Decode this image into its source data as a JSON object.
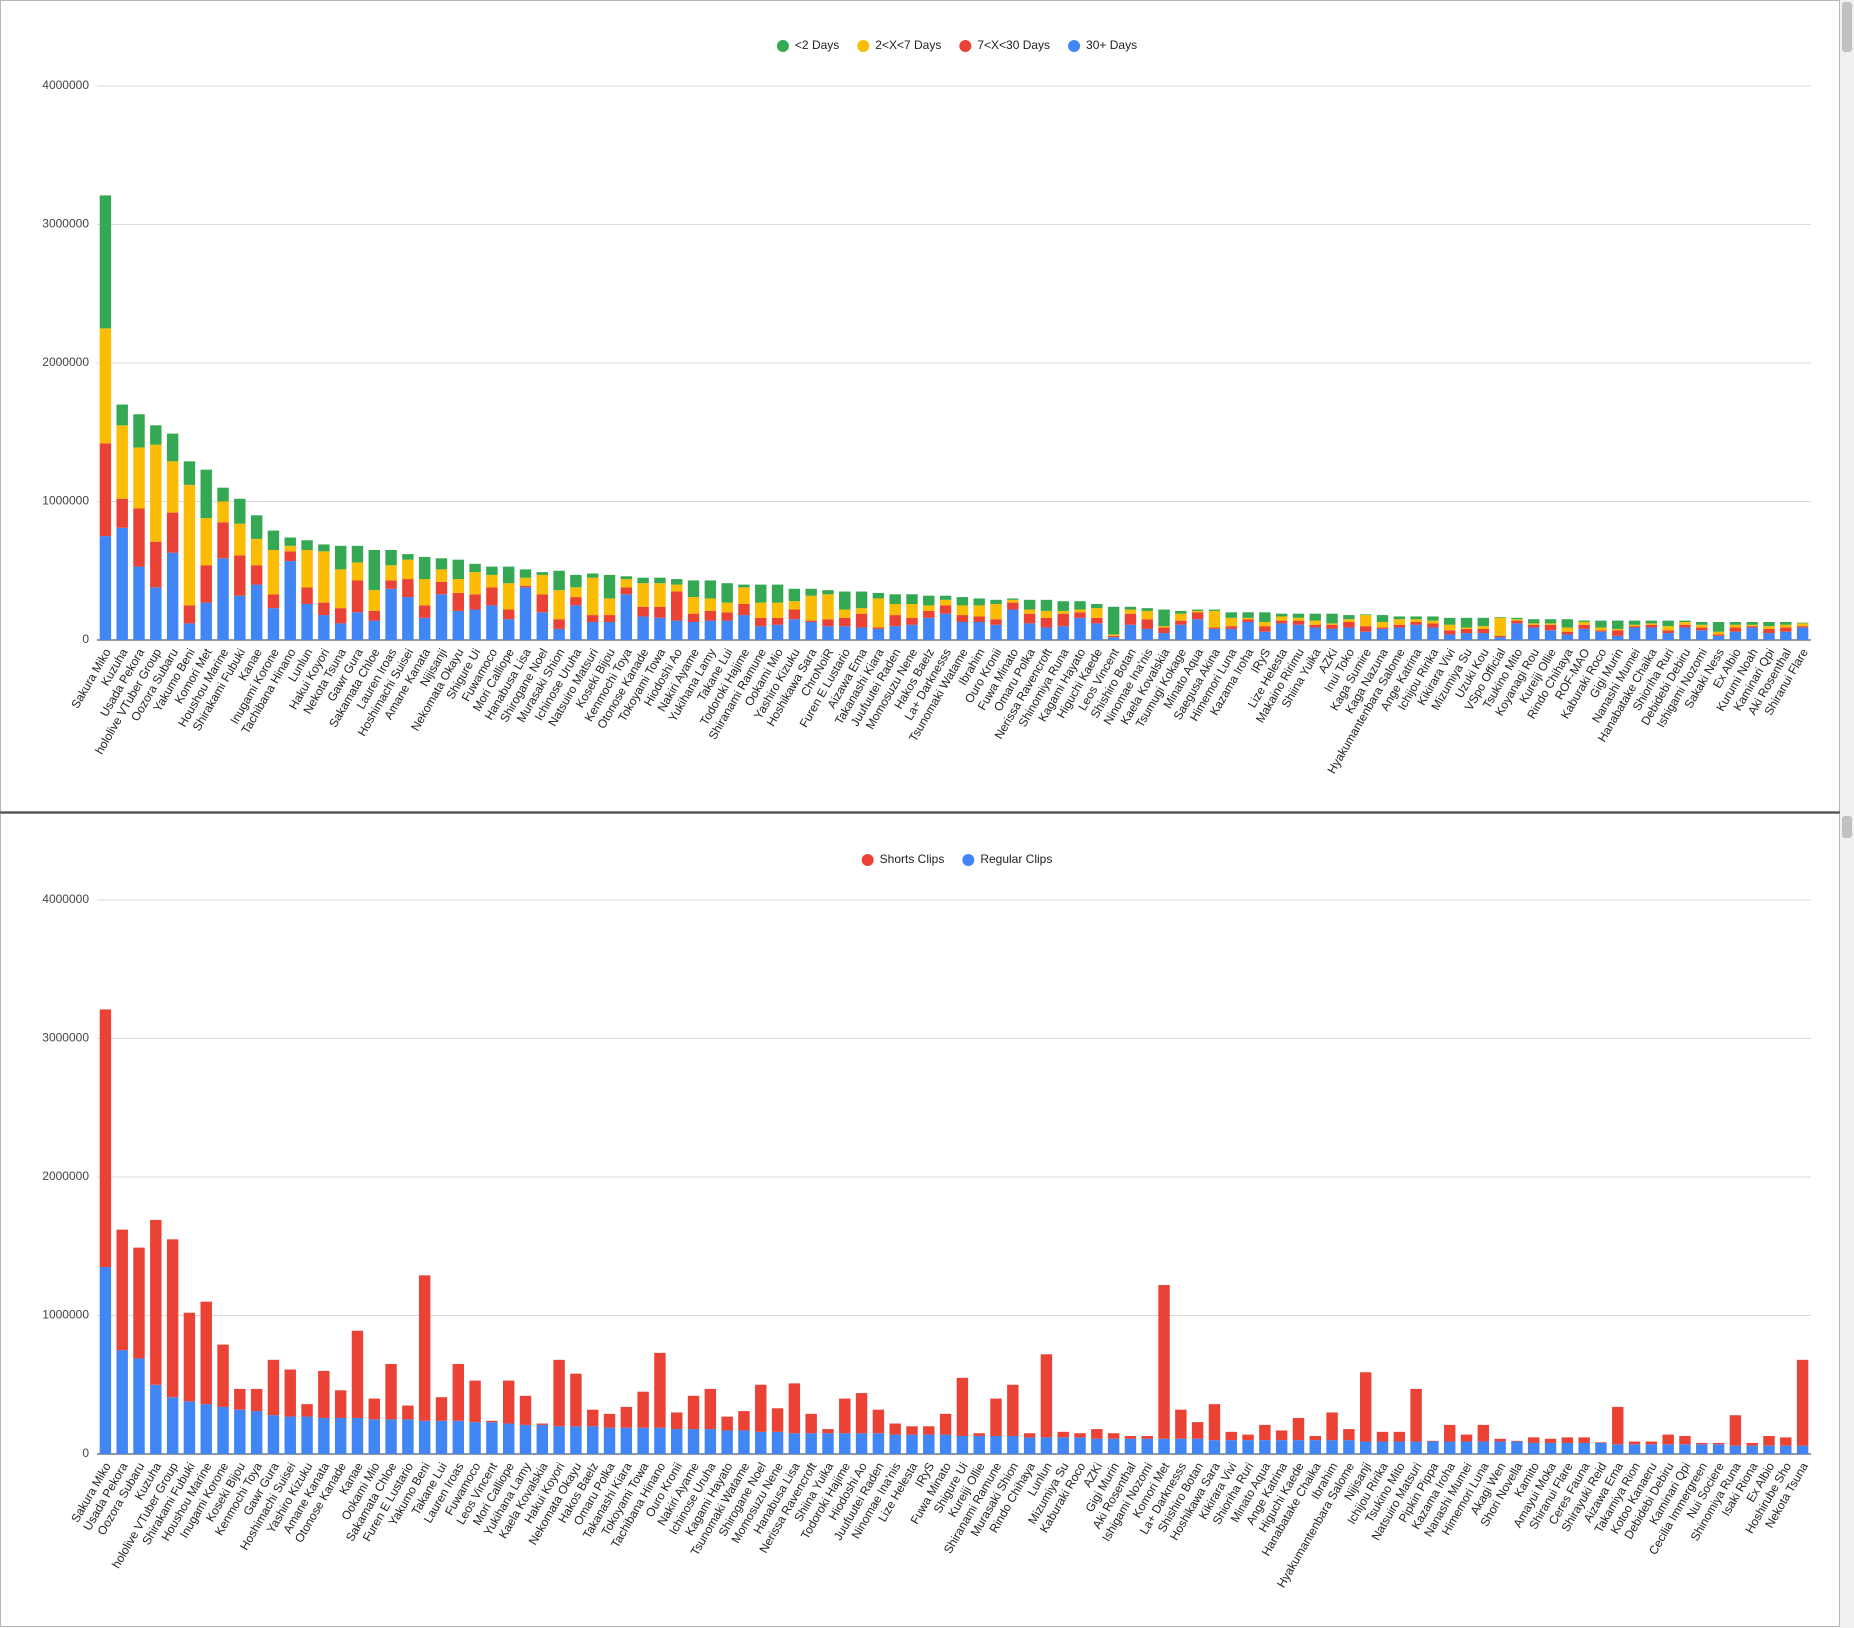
{
  "chart_data": [
    {
      "type": "stacked_bar",
      "categories": [
        "Sakura Miko",
        "Kuzuha",
        "Usada Pekora",
        "hololive VTuber Group",
        "Oozora Subaru",
        "Yakumo Beni",
        "Komori Met",
        "Houshou Marine",
        "Shirakami Fubuki",
        "Kanae",
        "Inugami Korone",
        "Tachibana Hinano",
        "Lunlun",
        "Hakui Koyori",
        "Nekota Tsuna",
        "Gawr Gura",
        "Sakamata Chloe",
        "Lauren Iroas",
        "Hoshimachi Suisei",
        "Amane Kanata",
        "Nijisanji",
        "Nekomata Okayu",
        "Shigure Ui",
        "Fuwamoco",
        "Mori Calliope",
        "Hanabusa Lisa",
        "Shirogane Noel",
        "Murasaki Shion",
        "Ichinose Uruha",
        "Natsuiro Matsuri",
        "Koseki Bijou",
        "Kenmochi Toya",
        "Otonose Kanade",
        "Tokoyami Towa",
        "Hiodoshi Ao",
        "Nakiri Ayame",
        "Yukihana Lamy",
        "Takane Lui",
        "Todoroki Hajime",
        "Shiranami Ramune",
        "Ookami Mio",
        "Yashiro Kizuku",
        "Hoshikawa Sara",
        "ChroNoiR",
        "Furen E Lustario",
        "Aizawa Ema",
        "Takanashi Kiara",
        "Juufuutei Raden",
        "Momosuzu Nene",
        "Hakos Baelz",
        "La+ Darknesss",
        "Tsunomaki Watame",
        "Ibrahim",
        "Ouro Kronii",
        "Fuwa Minato",
        "Omaru Polka",
        "Nerissa Ravencroft",
        "Shinomiya Runa",
        "Kagami Hayato",
        "Higuchi Kaede",
        "Leos Vincent",
        "Shishiro Botan",
        "Ninomae Ina'nis",
        "Kaela Kovalskia",
        "Tsumugi Kokage",
        "Minato Aqua",
        "Saegusa Akina",
        "Himemori Luna",
        "Kazama Iroha",
        "IRyS",
        "Lize Helesta",
        "Makaino Ririmu",
        "Shiina Yuika",
        "AZKi",
        "Inui Toko",
        "Kaga Sumire",
        "Kaga Nazuna",
        "Hyakumantenbara Salome",
        "Ange Katrina",
        "Ichijou Ririka",
        "Kikirara Vivi",
        "Mizumiya Su",
        "Uzuki Kou",
        "VSpo Official",
        "Tsukino Mito",
        "Koyanagi Rou",
        "Kureiji Ollie",
        "Rindo Chihaya",
        "ROF-MAO",
        "Kaburaki Roco",
        "Gigi Murin",
        "Nanashi Mumei",
        "Hanabatake Chaika",
        "Shioriha Ruri",
        "Debidebi Debiru",
        "Ishigami Nozomi",
        "Sakaki Ness",
        "Ex Albio",
        "Kurumi Noah",
        "Kaminari Qpi",
        "Aki Rosenthal",
        "Shiranui Flare"
      ],
      "series": [
        {
          "name": "<2 Days",
          "color": "#34a853",
          "values": [
            960000,
            150000,
            240000,
            140000,
            200000,
            170000,
            350000,
            100000,
            180000,
            170000,
            140000,
            60000,
            70000,
            50000,
            170000,
            120000,
            290000,
            110000,
            40000,
            160000,
            80000,
            140000,
            60000,
            60000,
            120000,
            60000,
            20000,
            140000,
            90000,
            30000,
            170000,
            20000,
            40000,
            40000,
            40000,
            120000,
            130000,
            140000,
            20000,
            130000,
            130000,
            90000,
            50000,
            30000,
            130000,
            120000,
            40000,
            70000,
            70000,
            70000,
            30000,
            60000,
            50000,
            30000,
            10000,
            70000,
            80000,
            70000,
            60000,
            30000,
            200000,
            20000,
            20000,
            120000,
            20000,
            10000,
            10000,
            40000,
            40000,
            70000,
            20000,
            30000,
            50000,
            70000,
            30000,
            5000,
            50000,
            20000,
            20000,
            30000,
            50000,
            70000,
            60000,
            5000,
            10000,
            30000,
            30000,
            60000,
            10000,
            50000,
            60000,
            30000,
            20000,
            40000,
            10000,
            20000,
            70000,
            20000,
            20000,
            30000,
            20000,
            5000
          ]
        },
        {
          "name": "2<X<7 Days",
          "color": "#fbbc04",
          "values": [
            830000,
            530000,
            440000,
            700000,
            370000,
            870000,
            340000,
            150000,
            230000,
            190000,
            320000,
            40000,
            270000,
            370000,
            280000,
            130000,
            150000,
            110000,
            140000,
            190000,
            90000,
            100000,
            160000,
            90000,
            190000,
            60000,
            140000,
            210000,
            70000,
            270000,
            120000,
            60000,
            170000,
            170000,
            50000,
            120000,
            90000,
            70000,
            120000,
            110000,
            110000,
            60000,
            180000,
            180000,
            60000,
            40000,
            210000,
            80000,
            100000,
            40000,
            40000,
            70000,
            80000,
            110000,
            20000,
            30000,
            50000,
            20000,
            20000,
            70000,
            10000,
            30000,
            60000,
            10000,
            50000,
            10000,
            120000,
            60000,
            10000,
            30000,
            30000,
            20000,
            30000,
            10000,
            20000,
            80000,
            40000,
            40000,
            20000,
            20000,
            40000,
            10000,
            20000,
            130000,
            10000,
            10000,
            10000,
            30000,
            20000,
            20000,
            10000,
            10000,
            10000,
            30000,
            20000,
            20000,
            20000,
            20000,
            10000,
            20000,
            20000,
            20000
          ]
        },
        {
          "name": "7<X<30 Days",
          "color": "#ea4335",
          "values": [
            670000,
            210000,
            420000,
            330000,
            290000,
            130000,
            270000,
            260000,
            290000,
            140000,
            100000,
            70000,
            120000,
            90000,
            110000,
            230000,
            70000,
            60000,
            130000,
            90000,
            90000,
            130000,
            110000,
            130000,
            70000,
            10000,
            130000,
            70000,
            60000,
            50000,
            50000,
            50000,
            70000,
            80000,
            210000,
            60000,
            70000,
            60000,
            80000,
            60000,
            50000,
            70000,
            10000,
            50000,
            60000,
            100000,
            10000,
            80000,
            50000,
            50000,
            60000,
            50000,
            40000,
            40000,
            50000,
            70000,
            70000,
            90000,
            40000,
            40000,
            10000,
            80000,
            70000,
            40000,
            30000,
            50000,
            10000,
            20000,
            20000,
            40000,
            20000,
            30000,
            20000,
            30000,
            40000,
            40000,
            10000,
            20000,
            20000,
            30000,
            30000,
            30000,
            30000,
            10000,
            20000,
            20000,
            40000,
            20000,
            30000,
            10000,
            40000,
            10000,
            20000,
            20000,
            20000,
            20000,
            10000,
            30000,
            10000,
            30000,
            30000,
            10000
          ]
        },
        {
          "name": "30+ Days",
          "color": "#4285f4",
          "values": [
            750000,
            810000,
            530000,
            380000,
            630000,
            120000,
            270000,
            590000,
            320000,
            400000,
            230000,
            570000,
            260000,
            180000,
            120000,
            200000,
            140000,
            370000,
            310000,
            160000,
            330000,
            210000,
            220000,
            250000,
            150000,
            380000,
            200000,
            80000,
            250000,
            130000,
            130000,
            330000,
            170000,
            160000,
            140000,
            130000,
            140000,
            140000,
            180000,
            100000,
            110000,
            150000,
            130000,
            100000,
            100000,
            90000,
            80000,
            100000,
            110000,
            160000,
            190000,
            130000,
            130000,
            110000,
            220000,
            120000,
            90000,
            100000,
            160000,
            120000,
            20000,
            110000,
            80000,
            50000,
            110000,
            150000,
            80000,
            80000,
            130000,
            60000,
            120000,
            110000,
            90000,
            80000,
            90000,
            60000,
            80000,
            90000,
            110000,
            90000,
            40000,
            50000,
            50000,
            20000,
            120000,
            90000,
            70000,
            40000,
            80000,
            60000,
            30000,
            90000,
            90000,
            50000,
            90000,
            70000,
            30000,
            60000,
            90000,
            50000,
            60000,
            90000
          ]
        }
      ],
      "ylim": [
        0,
        4000000
      ],
      "yticks": [
        0,
        1000000,
        2000000,
        3000000,
        4000000
      ],
      "grid": true,
      "legend": "top"
    },
    {
      "type": "stacked_bar",
      "categories": [
        "Sakura Miko",
        "Usada Pekora",
        "Oozora Subaru",
        "Kuzuha",
        "hololive VTuber Group",
        "Shirakami Fubuki",
        "Houshou Marine",
        "Inugami Korone",
        "Koseki Bijou",
        "Kenmochi Toya",
        "Gawr Gura",
        "Hoshimachi Suisei",
        "Yashiro Kizuku",
        "Amane Kanata",
        "Otonose Kanade",
        "Kanae",
        "Ookami Mio",
        "Sakamata Chloe",
        "Furen E Lustario",
        "Yakumo Beni",
        "Takane Lui",
        "Lauren Iroas",
        "Fuwamoco",
        "Leos Vincent",
        "Mori Calliope",
        "Yukihana Lamy",
        "Kaela Kovalskia",
        "Hakui Koyori",
        "Nekomata Okayu",
        "Hakos Baelz",
        "Omaru Polka",
        "Takanashi Kiara",
        "Tokoyami Towa",
        "Tachibana Hinano",
        "Ouro Kronii",
        "Nakiri Ayame",
        "Ichinose Uruha",
        "Kagami Hayato",
        "Tsunomaki Watame",
        "Shirogane Noel",
        "Momosuzu Nene",
        "Hanabusa Lisa",
        "Nerissa Ravencroft",
        "Shiina Yuika",
        "Todoroki Hajime",
        "Hiodoshi Ao",
        "Juufuutei Raden",
        "Ninomae Ina'nis",
        "Lize Helesta",
        "IRyS",
        "Fuwa Minato",
        "Shigure Ui",
        "Kureiji Ollie",
        "Shiranami Ramune",
        "Murasaki Shion",
        "Rindo Chihaya",
        "Lunlun",
        "Mizumiya Su",
        "Kaburaki Roco",
        "AZKi",
        "Gigi Murin",
        "Aki Rosenthal",
        "Ishigami Nozomi",
        "Komori Met",
        "La+ Darknesss",
        "Shishiro Botan",
        "Hoshikawa Sara",
        "Kikirara Vivi",
        "Shioriha Ruri",
        "Minato Aqua",
        "Ange Katrina",
        "Higuchi Kaede",
        "Hanabatake Chaika",
        "Ibrahim",
        "Hyakumantenbara Salome",
        "Nijisanji",
        "Ichijou Ririka",
        "Tsukino Mito",
        "Natsuiro Matsuri",
        "Pipkin Pippa",
        "Kazama Iroha",
        "Nanashi Mumei",
        "Himemori Luna",
        "Akagi Wen",
        "Shori Novella",
        "Kamito",
        "Amayui Moka",
        "Shiranui Flare",
        "Ceres Fauna",
        "Shirayuki Reid",
        "Aizawa Ema",
        "Takamiya Rion",
        "Kotoo Kanaeru",
        "Debidebi Debiru",
        "Kaminari Qpi",
        "Cecilia Immergreen",
        "Nui Sociere",
        "Shinomiya Runa",
        "Isaki Riona",
        "Ex Albio",
        "Hoshirube Sho",
        "Nekota Tsuna"
      ],
      "series": [
        {
          "name": "Shorts Clips",
          "color": "#ea4335",
          "values": [
            1860000,
            870000,
            800000,
            1190000,
            1140000,
            640000,
            740000,
            450000,
            150000,
            160000,
            400000,
            340000,
            90000,
            340000,
            200000,
            630000,
            150000,
            400000,
            100000,
            1050000,
            170000,
            410000,
            300000,
            10000,
            310000,
            210000,
            10000,
            480000,
            380000,
            120000,
            100000,
            150000,
            260000,
            540000,
            120000,
            240000,
            290000,
            100000,
            140000,
            340000,
            170000,
            360000,
            140000,
            30000,
            250000,
            290000,
            170000,
            80000,
            60000,
            60000,
            150000,
            420000,
            20000,
            270000,
            370000,
            30000,
            600000,
            40000,
            30000,
            70000,
            40000,
            20000,
            20000,
            1110000,
            210000,
            120000,
            260000,
            60000,
            40000,
            110000,
            70000,
            160000,
            30000,
            200000,
            80000,
            500000,
            70000,
            70000,
            380000,
            5000,
            120000,
            50000,
            120000,
            20000,
            5000,
            40000,
            30000,
            40000,
            40000,
            5000,
            270000,
            20000,
            20000,
            70000,
            60000,
            10000,
            10000,
            220000,
            20000,
            70000,
            60000,
            620000
          ]
        },
        {
          "name": "Regular Clips",
          "color": "#4285f4",
          "values": [
            1350000,
            750000,
            690000,
            500000,
            410000,
            380000,
            360000,
            340000,
            320000,
            310000,
            280000,
            270000,
            270000,
            260000,
            260000,
            260000,
            250000,
            250000,
            250000,
            240000,
            240000,
            240000,
            230000,
            230000,
            220000,
            210000,
            210000,
            200000,
            200000,
            200000,
            190000,
            190000,
            190000,
            190000,
            180000,
            180000,
            180000,
            170000,
            170000,
            160000,
            160000,
            150000,
            150000,
            150000,
            150000,
            150000,
            150000,
            140000,
            140000,
            140000,
            140000,
            130000,
            130000,
            130000,
            130000,
            120000,
            120000,
            120000,
            120000,
            110000,
            110000,
            110000,
            110000,
            110000,
            110000,
            110000,
            100000,
            100000,
            100000,
            100000,
            100000,
            100000,
            100000,
            100000,
            100000,
            90000,
            90000,
            90000,
            90000,
            90000,
            90000,
            90000,
            90000,
            90000,
            90000,
            80000,
            80000,
            80000,
            80000,
            80000,
            70000,
            70000,
            70000,
            70000,
            70000,
            70000,
            70000,
            60000,
            60000,
            60000,
            60000,
            60000
          ]
        }
      ],
      "ylim": [
        0,
        4000000
      ],
      "yticks": [
        0,
        1000000,
        2000000,
        3000000,
        4000000
      ],
      "grid": true,
      "legend": "top"
    }
  ]
}
